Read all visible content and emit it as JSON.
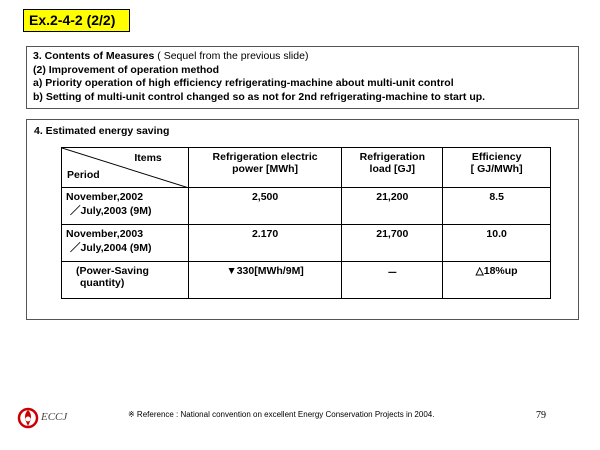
{
  "slide_title": "Ex.2-4-2 (2/2)",
  "measures": {
    "heading_bold": "3. Contents of Measures",
    "heading_note": " ( Sequel from the previous slide)",
    "sub": "(2) Improvement of operation method",
    "item_a": " a) Priority operation of high efficiency refrigerating-machine about multi-unit control",
    "item_b": " b) Setting of multi-unit control changed so as not for 2nd refrigerating-machine to start up."
  },
  "saving": {
    "title": "4. Estimated energy saving",
    "header": {
      "items": "Items",
      "period": "Period",
      "col2_l1": "Refrigeration electric",
      "col2_l2": "power  [MWh]",
      "col3_l1": "Refrigeration",
      "col3_l2": "load  [GJ]",
      "col4_l1": "Efficiency",
      "col4_l2": "[ GJ/MWh]"
    },
    "rows": [
      {
        "period_l1": "November,2002",
        "period_l2": "／July,2003  (9M)",
        "power": "2,500",
        "load": "21,200",
        "eff": "8.5"
      },
      {
        "period_l1": "November,2003",
        "period_l2": "／July,2004  (9M)",
        "power": "2.170",
        "load": "21,700",
        "eff": "10.0"
      }
    ],
    "summary": {
      "label_l1": "(Power-Saving",
      "label_l2": "quantity)",
      "power": "▼330[MWh/9M]",
      "load": "－",
      "eff": "△18%up"
    }
  },
  "footer": {
    "logo_text": "ECCJ",
    "reference": "※ Reference : National convention on excellent Energy Conservation Projects in 2004.",
    "page_number": "79"
  },
  "colors": {
    "title_bg": "#ffff00",
    "logo": "#cc0000"
  }
}
